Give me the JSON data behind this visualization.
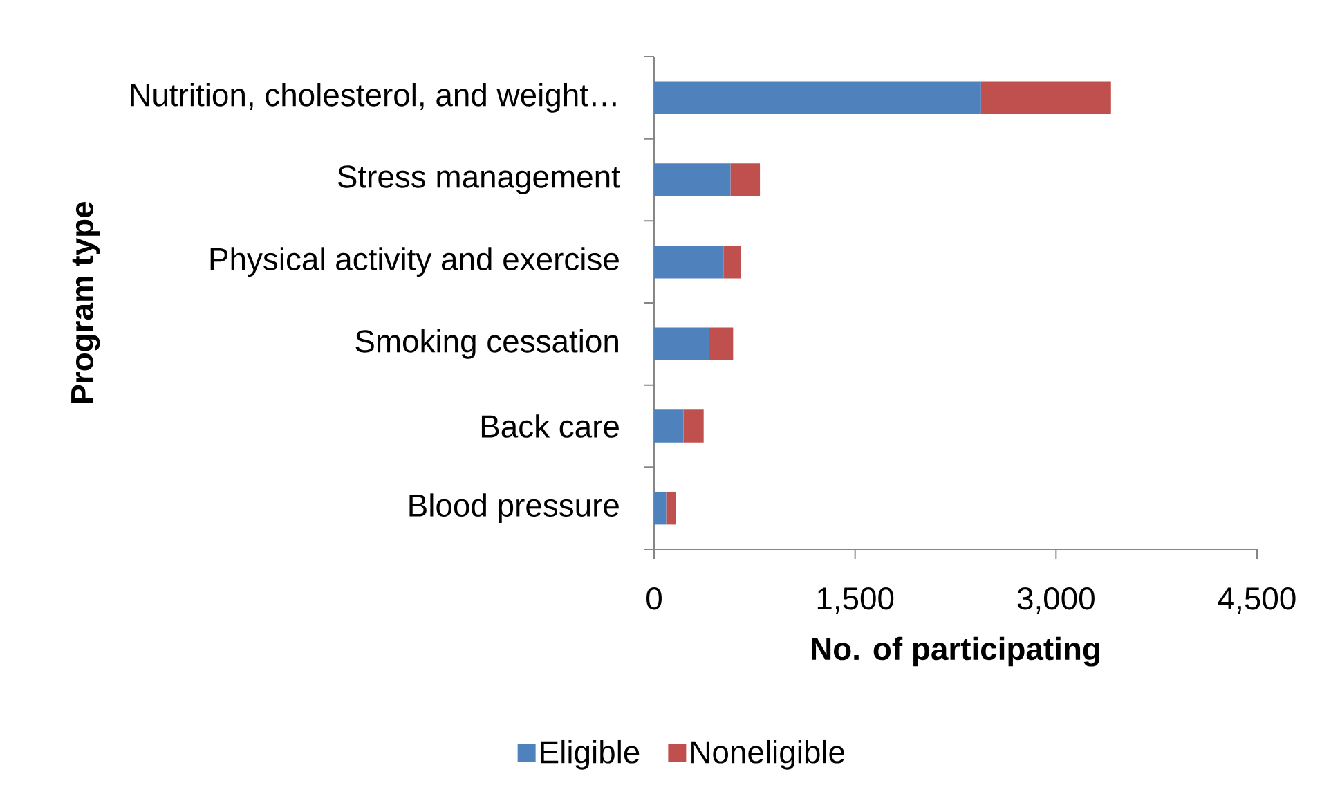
{
  "chart_data": {
    "type": "bar",
    "orientation": "horizontal",
    "stacked": true,
    "categories": [
      "Nutrition, cholesterol, and weight…",
      "Stress management",
      "Physical activity and exercise",
      "Smoking cessation",
      "Back care",
      "Blood pressure"
    ],
    "series": [
      {
        "name": "Eligible",
        "color": "#4f81bd",
        "values": [
          2440,
          570,
          520,
          410,
          220,
          90
        ]
      },
      {
        "name": "Noneligible",
        "color": "#c0504d",
        "values": [
          970,
          220,
          130,
          180,
          150,
          70
        ]
      }
    ],
    "xlabel": "No. of participating",
    "ylabel": "Program type",
    "xlim": [
      0,
      4500
    ],
    "xticks": [
      0,
      {
        "value": 1500,
        "label": "1,500"
      },
      {
        "value": 3000,
        "label": "3,000"
      },
      {
        "value": 4500,
        "label": "4,500"
      }
    ],
    "legend": "bottom",
    "grid": false
  }
}
